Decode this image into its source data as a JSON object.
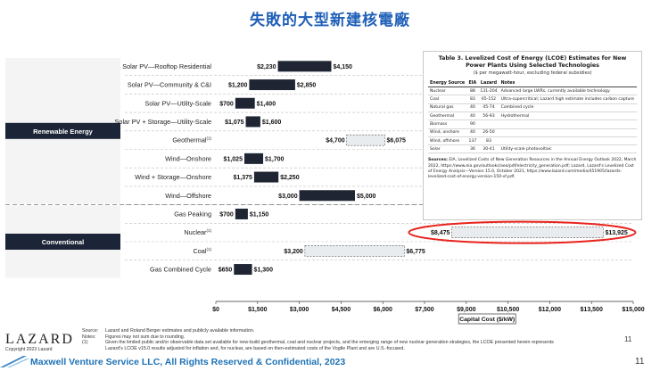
{
  "page_title": "失敗的大型新建核電廠",
  "chart_data": {
    "type": "bar",
    "categories": [
      "Solar PV—Rooftop Residential",
      "Solar PV—Community & C&I",
      "Solar PV—Utility-Scale",
      "Solar PV + Storage—Utility-Scale",
      "Geothermal",
      "Wind—Onshore",
      "Wind + Storage—Onshore",
      "Wind—Offshore",
      "Gas Peaking",
      "Nuclear",
      "Coal",
      "Gas Combined Cycle"
    ],
    "footnote_marks": [
      "",
      "",
      "",
      "",
      "(1)",
      "",
      "",
      "",
      "",
      "(1)",
      "(1)",
      ""
    ],
    "low": [
      2230,
      1200,
      700,
      1075,
      4700,
      1025,
      1375,
      3000,
      700,
      8475,
      3200,
      650
    ],
    "high": [
      4150,
      2850,
      1400,
      1600,
      6075,
      1700,
      2250,
      5000,
      1150,
      13925,
      6775,
      1300
    ],
    "low_labels": [
      "$2,230",
      "$1,200",
      "$700",
      "$1,075",
      "$4,700",
      "$1,025",
      "$1,375",
      "$3,000",
      "$700",
      "$8,475",
      "$3,200",
      "$650"
    ],
    "high_labels": [
      "$4,150",
      "$2,850",
      "$1,400",
      "$1,600",
      "$6,075",
      "$1,700",
      "$2,250",
      "$5,000",
      "$1,150",
      "$13,925",
      "$6,775",
      "$1,300"
    ],
    "bar_style": [
      "solid",
      "solid",
      "solid",
      "solid",
      "dashed",
      "solid",
      "solid",
      "solid",
      "solid",
      "dashed",
      "dashed",
      "solid"
    ],
    "groups": [
      {
        "label": "Renewable Energy",
        "first": 0,
        "last": 7
      },
      {
        "label": "Conventional",
        "first": 8,
        "last": 11
      }
    ],
    "xlabel": "Capital Cost ($/kW)",
    "xlim": [
      0,
      15000
    ],
    "xticks": [
      0,
      1500,
      3000,
      4500,
      6000,
      7500,
      9000,
      10500,
      12000,
      13500,
      15000
    ],
    "xtick_labels": [
      "$0",
      "$1,500",
      "$3,000",
      "$4,500",
      "$6,000",
      "$7,500",
      "$9,000",
      "$10,500",
      "$12,000",
      "$13,500",
      "$15,000"
    ],
    "highlight_category": "Nuclear",
    "colors": {
      "solid": "#1f2533",
      "dashed_fill": "#e9ecef",
      "highlight": "#e8231c",
      "group": "#1c2537"
    }
  },
  "lcoe_table": {
    "title": "Table 3. Levelized Cost of Energy (LCOE) Estimates for New Power Plants Using Selected Technologies",
    "subtitle": "($ per megawatt-hour, excluding federal subsidies)",
    "headers": [
      "Energy Source",
      "EIA",
      "Lazard",
      "Notes"
    ],
    "rows": [
      [
        "Nuclear",
        "88",
        "131-204",
        "Advanced large LWRs, currently available technology"
      ],
      [
        "Coal",
        "83",
        "65-152",
        "Ultra-supercritical; Lazard high estimate includes carbon capture"
      ],
      [
        "Natural gas",
        "40",
        "45-74",
        "Combined cycle"
      ],
      [
        "Geothermal",
        "40",
        "56-93",
        "Hydrothermal"
      ],
      [
        "Biomass",
        "90",
        "",
        ""
      ],
      [
        "Wind, onshore",
        "40",
        "26-50",
        ""
      ],
      [
        "Wind, offshore",
        "137",
        "83",
        ""
      ],
      [
        "Solar",
        "36",
        "30-41",
        "Utility-scale photovoltaic"
      ]
    ],
    "sources_label": "Sources:",
    "sources_text": "EIA, Levelized Costs of New Generation Resources in the Annual Energy Outlook 2022, March 2022, https://www.eia.gov/outlooks/aeo/pdf/electricity_generation.pdf; Lazard, Lazard's Levelized Cost of Energy Analysis—Version 15.0, October 2021, https://www.lazard.com/media/451905/lazards-levelized-cost-of-energy-version-150-vf.pdf."
  },
  "notes": {
    "source_key": "Source:",
    "source_text": "Lazard and Roland Berger estimates and publicly available information.",
    "notes_key": "Notes:",
    "notes_text": "Figures may not sum due to rounding.",
    "one_key": "(1)",
    "one_text": "Given the limited public and/or observable data set available for new-build geothermal, coal and nuclear projects, and the emerging range of new nuclear generation strategies, the LCOE presented herein represents",
    "one_text2": "Lazard's LCOE v15.0 results adjusted for inflation and, for nuclear, are based on then-estimated costs of the Vogtle Plant and are U.S.-focused."
  },
  "logo": "LAZARD",
  "copyright": "Copyright 2023 Lazard",
  "inner_page_number": "11",
  "footer_text": "Maxwell Venture Service LLC, All Rights Reserved & Confidential, 2023",
  "page_number": "11"
}
